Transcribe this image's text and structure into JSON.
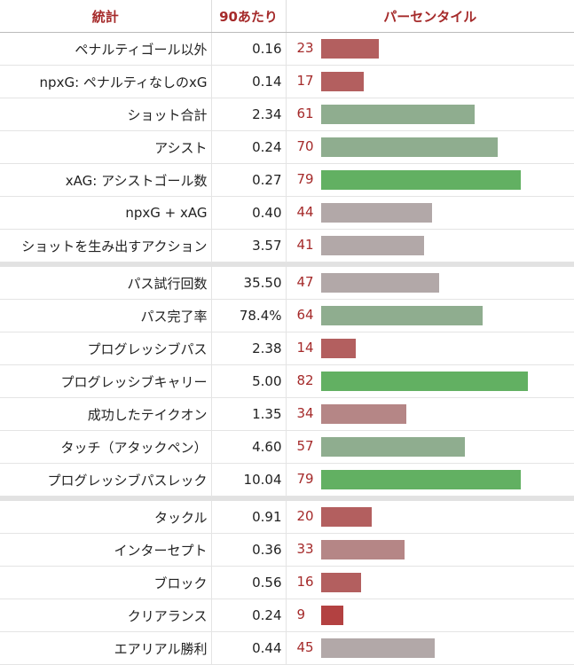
{
  "header": {
    "stat": "統計",
    "per90": "90あたり",
    "percentile": "パーセンタイル"
  },
  "groups": [
    [
      {
        "stat": "ペナルティゴール以外",
        "value": "0.16",
        "percentile": 23
      },
      {
        "stat": "npxG: ペナルティなしのxG",
        "value": "0.14",
        "percentile": 17
      },
      {
        "stat": "ショット合計",
        "value": "2.34",
        "percentile": 61
      },
      {
        "stat": "アシスト",
        "value": "0.24",
        "percentile": 70
      },
      {
        "stat": "xAG: アシストゴール数",
        "value": "0.27",
        "percentile": 79
      },
      {
        "stat": "npxG + xAG",
        "value": "0.40",
        "percentile": 44
      },
      {
        "stat": "ショットを生み出すアクション",
        "value": "3.57",
        "percentile": 41
      }
    ],
    [
      {
        "stat": "パス試行回数",
        "value": "35.50",
        "percentile": 47
      },
      {
        "stat": "パス完了率",
        "value": "78.4%",
        "percentile": 64
      },
      {
        "stat": "プログレッシブパス",
        "value": "2.38",
        "percentile": 14
      },
      {
        "stat": "プログレッシブキャリー",
        "value": "5.00",
        "percentile": 82
      },
      {
        "stat": "成功したテイクオン",
        "value": "1.35",
        "percentile": 34
      },
      {
        "stat": "タッチ（アタックペン）",
        "value": "4.60",
        "percentile": 57
      },
      {
        "stat": "プログレッシブパスレック",
        "value": "10.04",
        "percentile": 79
      }
    ],
    [
      {
        "stat": "タックル",
        "value": "0.91",
        "percentile": 20
      },
      {
        "stat": "インターセプト",
        "value": "0.36",
        "percentile": 33
      },
      {
        "stat": "ブロック",
        "value": "0.56",
        "percentile": 16
      },
      {
        "stat": "クリアランス",
        "value": "0.24",
        "percentile": 9
      },
      {
        "stat": "エアリアル勝利",
        "value": "0.44",
        "percentile": 45
      }
    ]
  ]
}
